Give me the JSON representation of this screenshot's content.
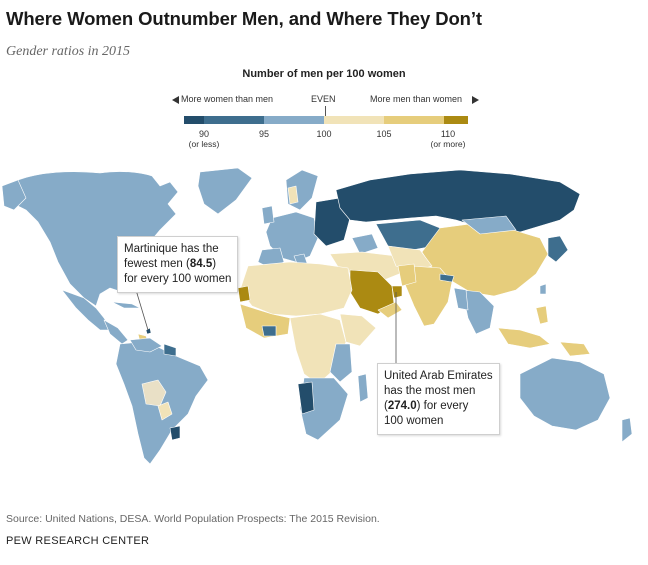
{
  "title": "Where Women Outnumber Men, and Where They Don’t",
  "subtitle": "Gender ratios in 2015",
  "legend": {
    "title": "Number of men per 100 women",
    "left_label": "More women than men",
    "center_label": "EVEN",
    "right_label": "More men than women",
    "ticks": [
      {
        "value": "90",
        "sub": "(or less)"
      },
      {
        "value": "95",
        "sub": ""
      },
      {
        "value": "100",
        "sub": ""
      },
      {
        "value": "105",
        "sub": ""
      },
      {
        "value": "110",
        "sub": "(or more)"
      }
    ],
    "colors": [
      "#234d6b",
      "#3e6e8e",
      "#86abc8",
      "#f1e3b8",
      "#e6cd7c",
      "#ab8a12"
    ]
  },
  "callouts": {
    "martinique": {
      "line1": "Martinique has the",
      "line2_pre": "fewest men (",
      "value": "84.5",
      "line2_post": ")",
      "line3": "for every 100 women"
    },
    "uae": {
      "line1": "United Arab Emirates",
      "line2": "has the most men",
      "value_pre": "(",
      "value": "274.0",
      "value_post": ") for every",
      "line4": "100 women"
    }
  },
  "source": "Source: United Nations, DESA. World Population Prospects: The 2015 Revision.",
  "brand": "PEW RESEARCH CENTER",
  "map_data": {
    "martinique_men_per_100_women": 84.5,
    "uae_men_per_100_women": 274.0
  }
}
